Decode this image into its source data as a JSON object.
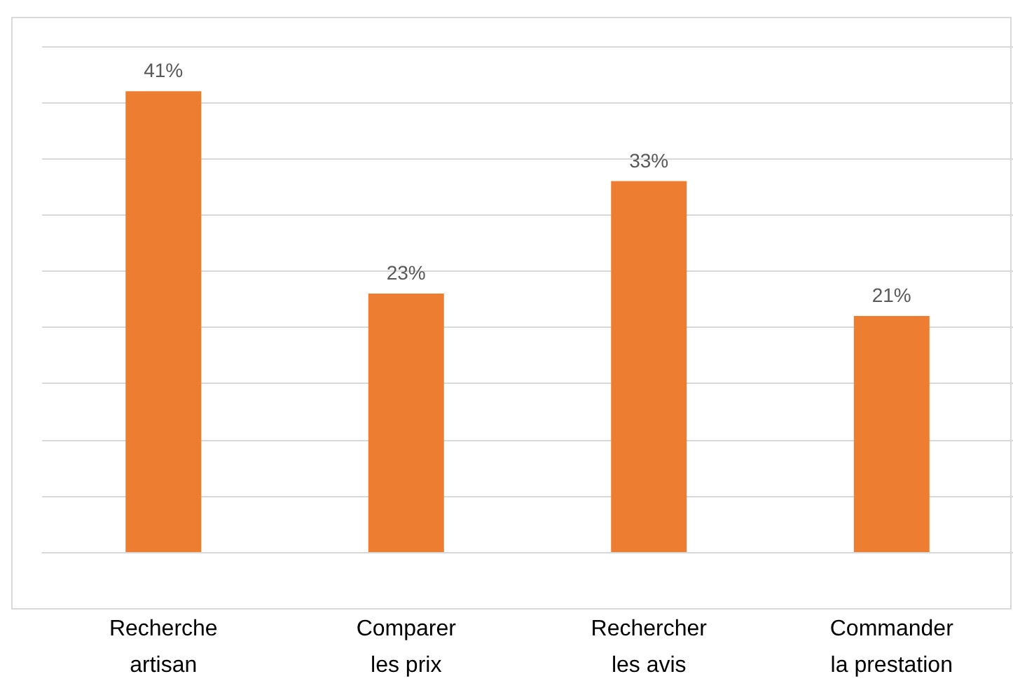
{
  "chart_data": {
    "type": "bar",
    "categories": [
      "Recherche\nartisan",
      "Comparer\nles prix",
      "Rechercher\nles avis",
      "Commander\nla prestation"
    ],
    "values": [
      41,
      23,
      33,
      21
    ],
    "value_labels": [
      "41%",
      "23%",
      "33%",
      "21%"
    ],
    "color": "#ed7d31",
    "ylim": [
      0,
      45
    ],
    "yticks": [
      {
        "value": 0,
        "label": null
      },
      {
        "value": 5,
        "label": null
      },
      {
        "value": 10,
        "label": null
      },
      {
        "value": 15,
        "label": null
      },
      {
        "value": 20,
        "label": null
      },
      {
        "value": 25,
        "label": null
      },
      {
        "value": 30,
        "label": null
      },
      {
        "value": 35,
        "label": null
      },
      {
        "value": 40,
        "label": null
      },
      {
        "value": 45,
        "label": null
      }
    ],
    "grid": "y",
    "tick_labels": "x"
  }
}
